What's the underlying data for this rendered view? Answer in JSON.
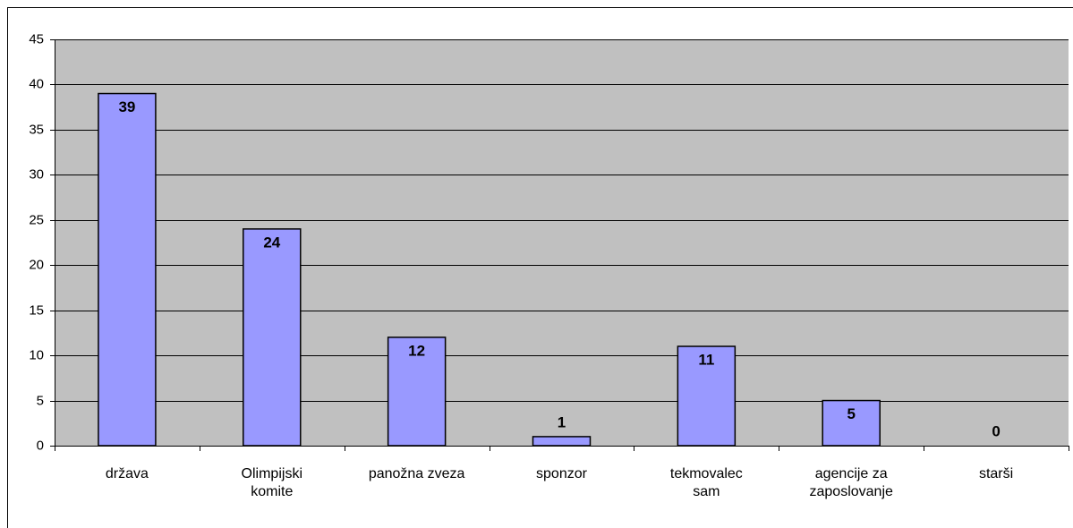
{
  "chart_data": {
    "type": "bar",
    "categories": [
      "država",
      "Olimpijski komite",
      "panožna zveza",
      "sponzor",
      "tekmovalec sam",
      "agencije za zaposlovanje",
      "starši"
    ],
    "values": [
      39,
      24,
      12,
      1,
      11,
      5,
      0
    ],
    "color": "#9999ff",
    "ylim": [
      0,
      45
    ],
    "yticks": [
      0,
      5,
      10,
      15,
      20,
      25,
      30,
      35,
      40,
      45
    ],
    "grid": true
  }
}
